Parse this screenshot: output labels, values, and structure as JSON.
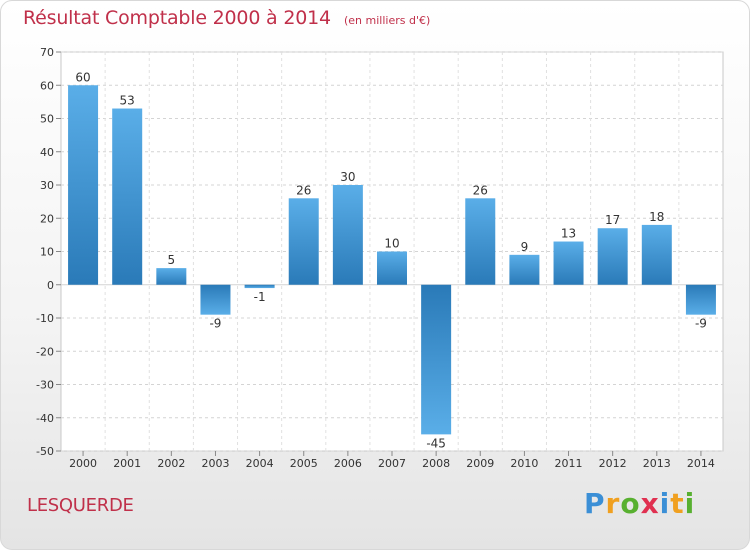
{
  "title": "Résultat Comptable 2000 à 2014",
  "unit": "(en milliers d'€)",
  "commune": "LESQUERDE",
  "brand": {
    "letters": [
      {
        "ch": "P",
        "color": "#3b8fd6"
      },
      {
        "ch": "r",
        "color": "#f0a020"
      },
      {
        "ch": "o",
        "color": "#58b030"
      },
      {
        "ch": "x",
        "color": "#e03050"
      },
      {
        "ch": "i",
        "color": "#3b8fd6"
      },
      {
        "ch": "t",
        "color": "#f0a020"
      },
      {
        "ch": "i",
        "color": "#58b030"
      }
    ]
  },
  "colors": {
    "bar_top": "#5aaee8",
    "bar_bottom": "#2a7ab8",
    "title": "#c0304a"
  },
  "chart_data": {
    "type": "bar",
    "title": "Résultat Comptable 2000 à 2014",
    "categories": [
      "2000",
      "2001",
      "2002",
      "2003",
      "2004",
      "2005",
      "2006",
      "2007",
      "2008",
      "2009",
      "2010",
      "2011",
      "2012",
      "2013",
      "2014"
    ],
    "values": [
      60,
      53,
      5,
      -9,
      -1,
      26,
      30,
      10,
      -45,
      26,
      9,
      13,
      17,
      18,
      -9
    ],
    "ylim": [
      -50,
      70
    ],
    "yticks": [
      70,
      60,
      50,
      40,
      30,
      20,
      10,
      0,
      -10,
      -20,
      -30,
      -40,
      -50
    ],
    "grid": true,
    "xlabel": "",
    "ylabel": ""
  }
}
